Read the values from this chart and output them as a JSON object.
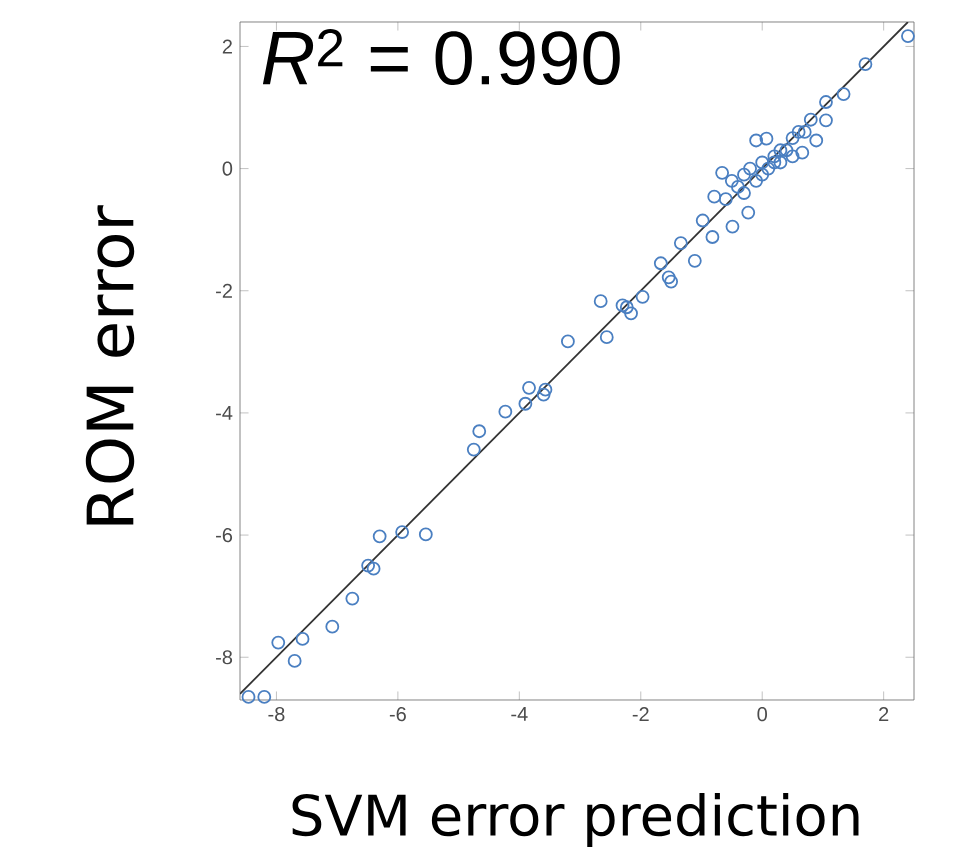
{
  "chart_data": {
    "type": "scatter",
    "xlabel": "SVM error prediction",
    "ylabel": "ROM error",
    "annotations": [
      "*R*$^{2}$ = 0.990"
    ],
    "xlim": [
      -8.6,
      2.5
    ],
    "ylim": [
      -8.7,
      2.4
    ],
    "xticks": [
      -8,
      -6,
      -4,
      -2,
      0,
      2
    ],
    "yticks": [
      -8,
      -6,
      -4,
      -2,
      0,
      2
    ],
    "grid": false,
    "series": [
      {
        "color": "#4a7fc1",
        "marker": "circle",
        "x": [
          -8.46,
          -8.2,
          -7.97,
          -7.57,
          -7.7,
          -7.08,
          -6.75,
          -6.49,
          -6.4,
          -6.3,
          -5.93,
          -5.54,
          -4.75,
          -4.66,
          -4.23,
          -3.9,
          -3.84,
          -3.6,
          -3.57,
          -3.2,
          -2.66,
          -2.56,
          -2.3,
          -2.16,
          -1.97,
          -2.23,
          -1.67,
          -1.54,
          -1.5,
          -1.34,
          -1.11,
          -0.98,
          -0.82,
          -0.79,
          -0.49,
          -0.23,
          -0.66,
          -0.1,
          0.07,
          0.66,
          0.89,
          1.05,
          1.05,
          1.34,
          1.7,
          2.4,
          -0.6,
          -0.4,
          -0.3,
          -0.2,
          0.0,
          0.1,
          0.2,
          0.3,
          0.4,
          0.5,
          -0.1,
          0.0,
          0.2,
          0.6,
          0.3,
          -0.5,
          0.7,
          0.8,
          0.5,
          -0.3
        ],
        "values": [
          -8.65,
          -8.65,
          -7.76,
          -7.7,
          -8.06,
          -7.5,
          -7.04,
          -6.5,
          -6.55,
          -6.02,
          -5.95,
          -5.99,
          -4.6,
          -4.3,
          -3.98,
          -3.85,
          -3.59,
          -3.7,
          -3.62,
          -2.83,
          -2.17,
          -2.76,
          -2.24,
          -2.37,
          -2.1,
          -2.27,
          -1.55,
          -1.78,
          -1.85,
          -1.22,
          -1.51,
          -0.85,
          -1.12,
          -0.46,
          -0.95,
          -0.72,
          -0.07,
          0.46,
          0.49,
          0.26,
          0.46,
          0.79,
          1.09,
          1.22,
          1.71,
          2.17,
          -0.5,
          -0.3,
          -0.1,
          0.0,
          0.1,
          0.0,
          0.2,
          0.3,
          0.3,
          0.5,
          -0.2,
          -0.1,
          0.1,
          0.6,
          0.1,
          -0.2,
          0.6,
          0.8,
          0.2,
          -0.4
        ]
      },
      {
        "type": "line",
        "color": "#333333",
        "marker": "none",
        "x": [
          -8.6,
          2.4
        ],
        "values": [
          -8.6,
          2.4
        ]
      }
    ]
  }
}
